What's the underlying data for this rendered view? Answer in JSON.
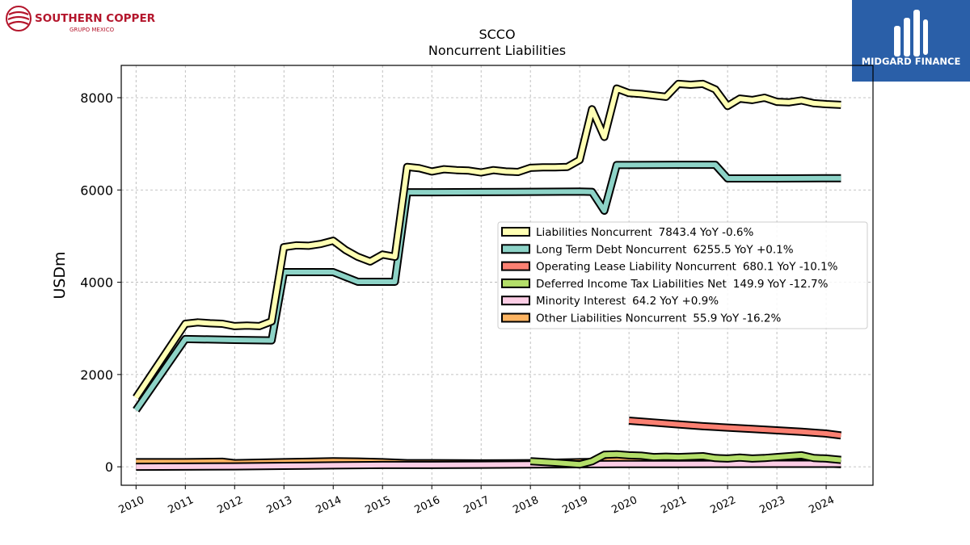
{
  "branding": {
    "left_logo_line1": "SOUTHERN COPPER",
    "left_logo_line2": "GRUPO MEXICO",
    "right_logo_text": "MIDGARD FINANCE"
  },
  "chart_data": {
    "type": "line",
    "title": "SCCO",
    "subtitle": "Noncurrent  Liabilities",
    "xlabel": "",
    "ylabel": "USDm",
    "xlim": [
      2009.7,
      2024.95
    ],
    "ylim": [
      -400,
      8700
    ],
    "xticks": [
      "2010",
      "2011",
      "2012",
      "2013",
      "2014",
      "2015",
      "2016",
      "2017",
      "2018",
      "2019",
      "2020",
      "2021",
      "2022",
      "2023",
      "2024"
    ],
    "yticks": [
      "0",
      "2000",
      "4000",
      "6000",
      "8000"
    ],
    "grid": true,
    "legend_position": "center-right",
    "series": [
      {
        "name": "Liabilities Noncurrent",
        "latest": "7843.4",
        "yoy": "YoY -0.6%",
        "color": "#ffffb3",
        "points": [
          [
            2010.0,
            1500
          ],
          [
            2011.0,
            3100
          ],
          [
            2011.25,
            3130
          ],
          [
            2011.5,
            3110
          ],
          [
            2011.75,
            3100
          ],
          [
            2012.0,
            3050
          ],
          [
            2012.25,
            3060
          ],
          [
            2012.5,
            3050
          ],
          [
            2012.75,
            3150
          ],
          [
            2013.0,
            4760
          ],
          [
            2013.25,
            4800
          ],
          [
            2013.5,
            4790
          ],
          [
            2013.75,
            4830
          ],
          [
            2014.0,
            4900
          ],
          [
            2014.25,
            4700
          ],
          [
            2014.5,
            4550
          ],
          [
            2014.75,
            4450
          ],
          [
            2015.0,
            4600
          ],
          [
            2015.25,
            4550
          ],
          [
            2015.5,
            6500
          ],
          [
            2015.75,
            6470
          ],
          [
            2016.0,
            6400
          ],
          [
            2016.25,
            6450
          ],
          [
            2016.5,
            6430
          ],
          [
            2016.75,
            6420
          ],
          [
            2017.0,
            6380
          ],
          [
            2017.25,
            6430
          ],
          [
            2017.5,
            6400
          ],
          [
            2017.75,
            6390
          ],
          [
            2018.0,
            6480
          ],
          [
            2018.25,
            6490
          ],
          [
            2018.5,
            6490
          ],
          [
            2018.75,
            6500
          ],
          [
            2019.0,
            6650
          ],
          [
            2019.25,
            7750
          ],
          [
            2019.5,
            7150
          ],
          [
            2019.75,
            8200
          ],
          [
            2020.0,
            8100
          ],
          [
            2020.25,
            8080
          ],
          [
            2020.5,
            8050
          ],
          [
            2020.75,
            8020
          ],
          [
            2021.0,
            8300
          ],
          [
            2021.25,
            8280
          ],
          [
            2021.5,
            8300
          ],
          [
            2021.75,
            8180
          ],
          [
            2022.0,
            7820
          ],
          [
            2022.25,
            7980
          ],
          [
            2022.5,
            7950
          ],
          [
            2022.75,
            8000
          ],
          [
            2023.0,
            7910
          ],
          [
            2023.25,
            7900
          ],
          [
            2023.5,
            7940
          ],
          [
            2023.75,
            7880
          ],
          [
            2024.0,
            7860
          ],
          [
            2024.3,
            7843.4
          ]
        ]
      },
      {
        "name": "Long Term Debt Noncurrent",
        "latest": "6255.5",
        "yoy": "YoY +0.1%",
        "color": "#8dd3c7",
        "points": [
          [
            2010.0,
            1230
          ],
          [
            2011.0,
            2770
          ],
          [
            2011.5,
            2760
          ],
          [
            2012.0,
            2750
          ],
          [
            2012.75,
            2740
          ],
          [
            2013.0,
            4220
          ],
          [
            2014.0,
            4220
          ],
          [
            2014.5,
            4010
          ],
          [
            2015.25,
            4010
          ],
          [
            2015.5,
            5950
          ],
          [
            2016.0,
            5950
          ],
          [
            2017.0,
            5955
          ],
          [
            2018.0,
            5960
          ],
          [
            2019.0,
            5965
          ],
          [
            2019.25,
            5960
          ],
          [
            2019.5,
            5550
          ],
          [
            2019.75,
            6540
          ],
          [
            2020.0,
            6540
          ],
          [
            2021.0,
            6545
          ],
          [
            2021.75,
            6545
          ],
          [
            2022.0,
            6250
          ],
          [
            2022.5,
            6250
          ],
          [
            2023.0,
            6250
          ],
          [
            2023.5,
            6252
          ],
          [
            2024.0,
            6255
          ],
          [
            2024.3,
            6255.5
          ]
        ]
      },
      {
        "name": "Operating Lease Liability Noncurrent",
        "latest": "680.1",
        "yoy": "YoY -10.1%",
        "color": "#fb8072",
        "points": [
          [
            2020.0,
            1000
          ],
          [
            2020.5,
            960
          ],
          [
            2021.0,
            920
          ],
          [
            2021.5,
            880
          ],
          [
            2022.0,
            850
          ],
          [
            2022.5,
            820
          ],
          [
            2023.0,
            790
          ],
          [
            2023.5,
            760
          ],
          [
            2024.0,
            720
          ],
          [
            2024.3,
            680.1
          ]
        ]
      },
      {
        "name": "Deferred Income Tax Liabilities Net",
        "latest": "149.9",
        "yoy": "YoY -12.7%",
        "color": "#b3de69",
        "points": [
          [
            2018.0,
            120
          ],
          [
            2018.5,
            90
          ],
          [
            2019.0,
            50
          ],
          [
            2019.25,
            120
          ],
          [
            2019.5,
            260
          ],
          [
            2019.75,
            270
          ],
          [
            2020.0,
            250
          ],
          [
            2020.25,
            240
          ],
          [
            2020.5,
            210
          ],
          [
            2020.75,
            220
          ],
          [
            2021.0,
            210
          ],
          [
            2021.5,
            230
          ],
          [
            2021.75,
            190
          ],
          [
            2022.0,
            180
          ],
          [
            2022.25,
            200
          ],
          [
            2022.5,
            180
          ],
          [
            2022.75,
            190
          ],
          [
            2023.0,
            210
          ],
          [
            2023.25,
            230
          ],
          [
            2023.5,
            250
          ],
          [
            2023.75,
            190
          ],
          [
            2024.0,
            180
          ],
          [
            2024.3,
            149.9
          ]
        ]
      },
      {
        "name": "Minority Interest",
        "latest": "64.2",
        "yoy": "YoY +0.9%",
        "color": "#fccde5",
        "points": [
          [
            2010.0,
            0
          ],
          [
            2011.0,
            5
          ],
          [
            2012.0,
            10
          ],
          [
            2013.0,
            20
          ],
          [
            2014.0,
            30
          ],
          [
            2015.0,
            40
          ],
          [
            2016.0,
            40
          ],
          [
            2017.0,
            45
          ],
          [
            2018.0,
            50
          ],
          [
            2019.0,
            55
          ],
          [
            2020.0,
            60
          ],
          [
            2021.0,
            60
          ],
          [
            2022.0,
            62
          ],
          [
            2023.0,
            63
          ],
          [
            2024.0,
            64
          ],
          [
            2024.3,
            64.2
          ]
        ]
      },
      {
        "name": "Other Liabilities Noncurrent",
        "latest": "55.9",
        "yoy": "YoY -16.2%",
        "color": "#fdb462",
        "points": [
          [
            2010.0,
            100
          ],
          [
            2011.0,
            100
          ],
          [
            2011.75,
            110
          ],
          [
            2012.0,
            80
          ],
          [
            2012.5,
            90
          ],
          [
            2013.0,
            100
          ],
          [
            2013.5,
            110
          ],
          [
            2014.0,
            120
          ],
          [
            2014.5,
            115
          ],
          [
            2015.0,
            100
          ],
          [
            2015.5,
            80
          ],
          [
            2016.0,
            80
          ],
          [
            2017.0,
            75
          ],
          [
            2018.0,
            80
          ],
          [
            2018.5,
            90
          ],
          [
            2019.0,
            100
          ],
          [
            2019.5,
            110
          ],
          [
            2019.75,
            170
          ],
          [
            2020.0,
            150
          ],
          [
            2020.5,
            140
          ],
          [
            2021.0,
            150
          ],
          [
            2021.5,
            140
          ],
          [
            2022.0,
            80
          ],
          [
            2022.5,
            70
          ],
          [
            2023.0,
            90
          ],
          [
            2023.5,
            75
          ],
          [
            2024.0,
            70
          ],
          [
            2024.3,
            55.9
          ]
        ]
      }
    ]
  }
}
